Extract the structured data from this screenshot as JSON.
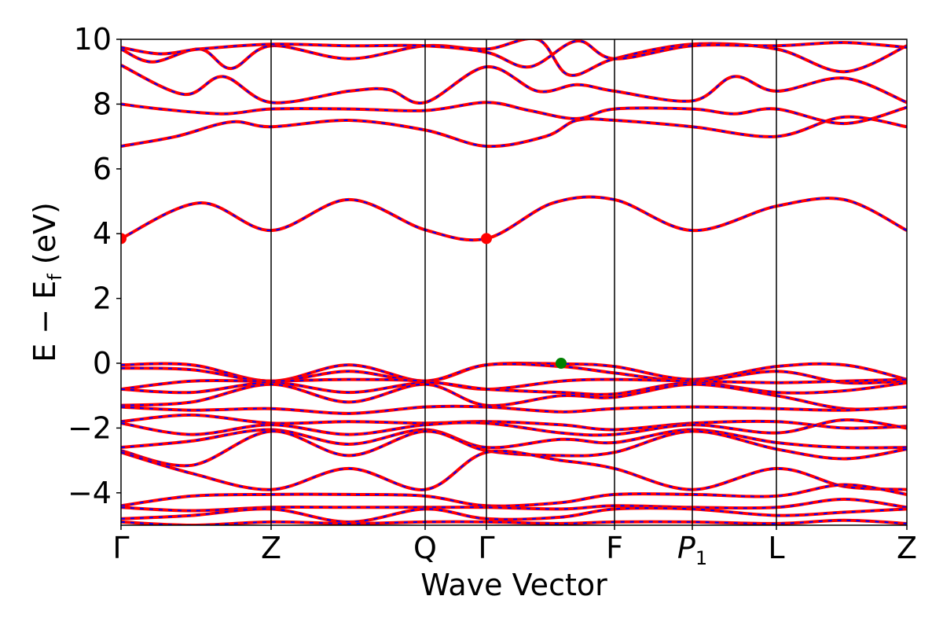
{
  "chart_data": {
    "type": "line",
    "title": "",
    "xlabel": "Wave Vector",
    "ylabel_parts": {
      "main": "E − E",
      "sub": "f",
      "tail": " (eV)"
    },
    "ylim": [
      -5,
      10
    ],
    "yticks": [
      -4,
      -2,
      0,
      2,
      4,
      6,
      8,
      10
    ],
    "ytick_labels": [
      "−4",
      "−2",
      "0",
      "2",
      "4",
      "6",
      "8",
      "10"
    ],
    "kpath": [
      {
        "label": "Γ",
        "x": 0.0
      },
      {
        "label": "Z",
        "x": 0.191
      },
      {
        "label": "Q",
        "x": 0.387
      },
      {
        "label": "Γ",
        "x": 0.465
      },
      {
        "label": "F",
        "x": 0.628
      },
      {
        "label": "P",
        "sub": "1",
        "x": 0.727
      },
      {
        "label": "L",
        "x": 0.834
      },
      {
        "label": "Z",
        "x": 1.0
      }
    ],
    "grid": false,
    "series_style": {
      "primary": "#ff0000",
      "overlay": "#0000ff"
    },
    "bands": [
      [
        [
          0,
          3.85
        ],
        [
          0.1,
          4.95
        ],
        [
          0.191,
          4.1
        ],
        [
          0.29,
          5.05
        ],
        [
          0.387,
          4.12
        ],
        [
          0.465,
          3.85
        ],
        [
          0.55,
          4.95
        ],
        [
          0.628,
          5.05
        ],
        [
          0.727,
          4.1
        ],
        [
          0.834,
          4.85
        ],
        [
          0.92,
          5.05
        ],
        [
          1.0,
          4.1
        ]
      ],
      [
        [
          0,
          6.7
        ],
        [
          0.07,
          7.0
        ],
        [
          0.14,
          7.45
        ],
        [
          0.191,
          7.3
        ],
        [
          0.29,
          7.5
        ],
        [
          0.387,
          7.2
        ],
        [
          0.465,
          6.7
        ],
        [
          0.54,
          7.0
        ],
        [
          0.58,
          7.5
        ],
        [
          0.628,
          7.5
        ],
        [
          0.727,
          7.3
        ],
        [
          0.834,
          7.0
        ],
        [
          0.92,
          7.6
        ],
        [
          1.0,
          7.3
        ]
      ],
      [
        [
          0,
          8.0
        ],
        [
          0.05,
          7.85
        ],
        [
          0.13,
          7.7
        ],
        [
          0.191,
          7.85
        ],
        [
          0.29,
          7.85
        ],
        [
          0.387,
          7.8
        ],
        [
          0.465,
          8.05
        ],
        [
          0.52,
          7.8
        ],
        [
          0.58,
          7.55
        ],
        [
          0.628,
          7.85
        ],
        [
          0.727,
          7.85
        ],
        [
          0.78,
          7.7
        ],
        [
          0.834,
          7.85
        ],
        [
          0.92,
          7.4
        ],
        [
          1.0,
          7.9
        ]
      ],
      [
        [
          0,
          9.2
        ],
        [
          0.08,
          8.3
        ],
        [
          0.13,
          8.85
        ],
        [
          0.191,
          8.05
        ],
        [
          0.29,
          8.4
        ],
        [
          0.34,
          8.45
        ],
        [
          0.387,
          8.05
        ],
        [
          0.465,
          9.15
        ],
        [
          0.53,
          8.4
        ],
        [
          0.58,
          8.6
        ],
        [
          0.628,
          8.4
        ],
        [
          0.727,
          8.1
        ],
        [
          0.78,
          8.85
        ],
        [
          0.834,
          8.4
        ],
        [
          0.92,
          8.8
        ],
        [
          1.0,
          8.05
        ]
      ],
      [
        [
          0,
          9.7
        ],
        [
          0.04,
          9.3
        ],
        [
          0.1,
          9.7
        ],
        [
          0.14,
          9.1
        ],
        [
          0.191,
          9.8
        ],
        [
          0.29,
          9.4
        ],
        [
          0.387,
          9.8
        ],
        [
          0.465,
          9.7
        ],
        [
          0.53,
          10.0
        ],
        [
          0.57,
          8.9
        ],
        [
          0.628,
          9.4
        ],
        [
          0.727,
          9.85
        ],
        [
          0.834,
          9.7
        ],
        [
          0.92,
          9.0
        ],
        [
          1.0,
          9.8
        ]
      ],
      [
        [
          0,
          9.75
        ],
        [
          0.05,
          9.55
        ],
        [
          0.1,
          9.7
        ],
        [
          0.191,
          9.85
        ],
        [
          0.29,
          9.8
        ],
        [
          0.387,
          9.8
        ],
        [
          0.465,
          9.6
        ],
        [
          0.52,
          9.15
        ],
        [
          0.58,
          9.95
        ],
        [
          0.628,
          9.4
        ],
        [
          0.727,
          9.8
        ],
        [
          0.834,
          9.8
        ],
        [
          0.92,
          9.9
        ],
        [
          1.0,
          9.75
        ]
      ],
      [
        [
          0,
          -0.05
        ],
        [
          0.09,
          -0.05
        ],
        [
          0.191,
          -0.55
        ],
        [
          0.29,
          -0.05
        ],
        [
          0.387,
          -0.55
        ],
        [
          0.465,
          -0.05
        ],
        [
          0.56,
          -0.02
        ],
        [
          0.628,
          -0.1
        ],
        [
          0.727,
          -0.5
        ],
        [
          0.834,
          -0.1
        ],
        [
          0.92,
          -0.05
        ],
        [
          1.0,
          -0.5
        ]
      ],
      [
        [
          0,
          -0.15
        ],
        [
          0.09,
          -0.2
        ],
        [
          0.191,
          -0.55
        ],
        [
          0.29,
          -0.25
        ],
        [
          0.387,
          -0.55
        ],
        [
          0.465,
          -0.05
        ],
        [
          0.56,
          -0.1
        ],
        [
          0.628,
          -0.3
        ],
        [
          0.727,
          -0.55
        ],
        [
          0.834,
          -0.25
        ],
        [
          0.92,
          -0.6
        ],
        [
          1.0,
          -0.55
        ]
      ],
      [
        [
          0,
          -0.8
        ],
        [
          0.09,
          -0.55
        ],
        [
          0.191,
          -0.55
        ],
        [
          0.29,
          -0.5
        ],
        [
          0.387,
          -0.55
        ],
        [
          0.465,
          -0.8
        ],
        [
          0.56,
          -0.55
        ],
        [
          0.628,
          -0.5
        ],
        [
          0.727,
          -0.55
        ],
        [
          0.834,
          -0.6
        ],
        [
          0.92,
          -0.55
        ],
        [
          1.0,
          -0.5
        ]
      ],
      [
        [
          0,
          -0.8
        ],
        [
          0.09,
          -0.9
        ],
        [
          0.191,
          -0.6
        ],
        [
          0.29,
          -0.9
        ],
        [
          0.387,
          -0.6
        ],
        [
          0.465,
          -0.8
        ],
        [
          0.56,
          -0.9
        ],
        [
          0.628,
          -0.95
        ],
        [
          0.727,
          -0.6
        ],
        [
          0.834,
          -0.9
        ],
        [
          0.92,
          -0.85
        ],
        [
          1.0,
          -0.6
        ]
      ],
      [
        [
          0,
          -1.3
        ],
        [
          0.09,
          -1.2
        ],
        [
          0.191,
          -0.65
        ],
        [
          0.29,
          -1.2
        ],
        [
          0.387,
          -0.65
        ],
        [
          0.465,
          -1.3
        ],
        [
          0.56,
          -1.0
        ],
        [
          0.628,
          -1.05
        ],
        [
          0.727,
          -0.65
        ],
        [
          0.834,
          -1.0
        ],
        [
          0.92,
          -1.4
        ],
        [
          1.0,
          -1.35
        ]
      ],
      [
        [
          0,
          -1.35
        ],
        [
          0.09,
          -1.45
        ],
        [
          0.191,
          -1.4
        ],
        [
          0.29,
          -1.55
        ],
        [
          0.387,
          -1.35
        ],
        [
          0.465,
          -1.35
        ],
        [
          0.56,
          -1.5
        ],
        [
          0.628,
          -1.4
        ],
        [
          0.727,
          -1.35
        ],
        [
          0.834,
          -1.4
        ],
        [
          0.92,
          -1.45
        ],
        [
          1.0,
          -1.35
        ]
      ],
      [
        [
          0,
          -1.8
        ],
        [
          0.09,
          -1.6
        ],
        [
          0.191,
          -1.85
        ],
        [
          0.29,
          -1.8
        ],
        [
          0.387,
          -1.85
        ],
        [
          0.465,
          -1.8
        ],
        [
          0.56,
          -1.9
        ],
        [
          0.628,
          -2.05
        ],
        [
          0.727,
          -1.85
        ],
        [
          0.834,
          -1.8
        ],
        [
          0.92,
          -2.0
        ],
        [
          1.0,
          -1.95
        ]
      ],
      [
        [
          0,
          -1.85
        ],
        [
          0.09,
          -2.2
        ],
        [
          0.191,
          -1.9
        ],
        [
          0.29,
          -2.2
        ],
        [
          0.387,
          -1.9
        ],
        [
          0.465,
          -1.85
        ],
        [
          0.56,
          -2.15
        ],
        [
          0.628,
          -2.2
        ],
        [
          0.727,
          -1.9
        ],
        [
          0.834,
          -2.15
        ],
        [
          0.92,
          -1.75
        ],
        [
          1.0,
          -2.0
        ]
      ],
      [
        [
          0,
          -2.6
        ],
        [
          0.09,
          -2.4
        ],
        [
          0.191,
          -2.05
        ],
        [
          0.29,
          -2.5
        ],
        [
          0.387,
          -2.05
        ],
        [
          0.465,
          -2.6
        ],
        [
          0.56,
          -2.35
        ],
        [
          0.628,
          -2.45
        ],
        [
          0.727,
          -2.05
        ],
        [
          0.834,
          -2.45
        ],
        [
          0.92,
          -2.6
        ],
        [
          1.0,
          -2.6
        ]
      ],
      [
        [
          0,
          -2.7
        ],
        [
          0.09,
          -3.15
        ],
        [
          0.191,
          -2.1
        ],
        [
          0.29,
          -2.85
        ],
        [
          0.387,
          -2.1
        ],
        [
          0.465,
          -2.7
        ],
        [
          0.56,
          -2.85
        ],
        [
          0.628,
          -2.75
        ],
        [
          0.727,
          -2.1
        ],
        [
          0.834,
          -2.65
        ],
        [
          0.92,
          -2.95
        ],
        [
          1.0,
          -2.65
        ]
      ],
      [
        [
          0,
          -2.75
        ],
        [
          0.09,
          -3.4
        ],
        [
          0.191,
          -3.9
        ],
        [
          0.29,
          -3.25
        ],
        [
          0.387,
          -3.9
        ],
        [
          0.465,
          -2.75
        ],
        [
          0.56,
          -3.0
        ],
        [
          0.628,
          -3.25
        ],
        [
          0.727,
          -3.9
        ],
        [
          0.834,
          -3.25
        ],
        [
          0.92,
          -3.8
        ],
        [
          1.0,
          -3.9
        ]
      ],
      [
        [
          0,
          -4.4
        ],
        [
          0.09,
          -4.1
        ],
        [
          0.191,
          -4.05
        ],
        [
          0.29,
          -4.05
        ],
        [
          0.387,
          -4.1
        ],
        [
          0.465,
          -4.4
        ],
        [
          0.56,
          -4.3
        ],
        [
          0.628,
          -4.05
        ],
        [
          0.727,
          -4.05
        ],
        [
          0.834,
          -4.1
        ],
        [
          0.92,
          -3.75
        ],
        [
          1.0,
          -4.05
        ]
      ],
      [
        [
          0,
          -4.45
        ],
        [
          0.09,
          -4.55
        ],
        [
          0.191,
          -4.45
        ],
        [
          0.29,
          -4.45
        ],
        [
          0.387,
          -4.45
        ],
        [
          0.465,
          -4.45
        ],
        [
          0.56,
          -4.5
        ],
        [
          0.628,
          -4.4
        ],
        [
          0.727,
          -4.45
        ],
        [
          0.834,
          -4.45
        ],
        [
          0.92,
          -4.2
        ],
        [
          1.0,
          -4.45
        ]
      ],
      [
        [
          0,
          -4.8
        ],
        [
          0.09,
          -4.7
        ],
        [
          0.191,
          -4.5
        ],
        [
          0.29,
          -4.9
        ],
        [
          0.387,
          -4.5
        ],
        [
          0.465,
          -4.8
        ],
        [
          0.56,
          -4.75
        ],
        [
          0.628,
          -4.5
        ],
        [
          0.727,
          -4.5
        ],
        [
          0.834,
          -4.7
        ],
        [
          0.92,
          -4.6
        ],
        [
          1.0,
          -4.5
        ]
      ],
      [
        [
          0,
          -4.9
        ],
        [
          0.09,
          -5.0
        ],
        [
          0.191,
          -4.9
        ],
        [
          0.29,
          -4.95
        ],
        [
          0.387,
          -4.9
        ],
        [
          0.465,
          -4.9
        ],
        [
          0.56,
          -4.95
        ],
        [
          0.628,
          -4.9
        ],
        [
          0.727,
          -4.9
        ],
        [
          0.834,
          -4.95
        ],
        [
          0.92,
          -4.85
        ],
        [
          1.0,
          -4.95
        ]
      ]
    ],
    "markers": [
      {
        "x": 0.0,
        "y": 3.85,
        "color": "#ff0000"
      },
      {
        "x": 0.465,
        "y": 3.85,
        "color": "#ff0000"
      },
      {
        "x": 0.56,
        "y": 0.0,
        "color": "#008000"
      }
    ]
  }
}
